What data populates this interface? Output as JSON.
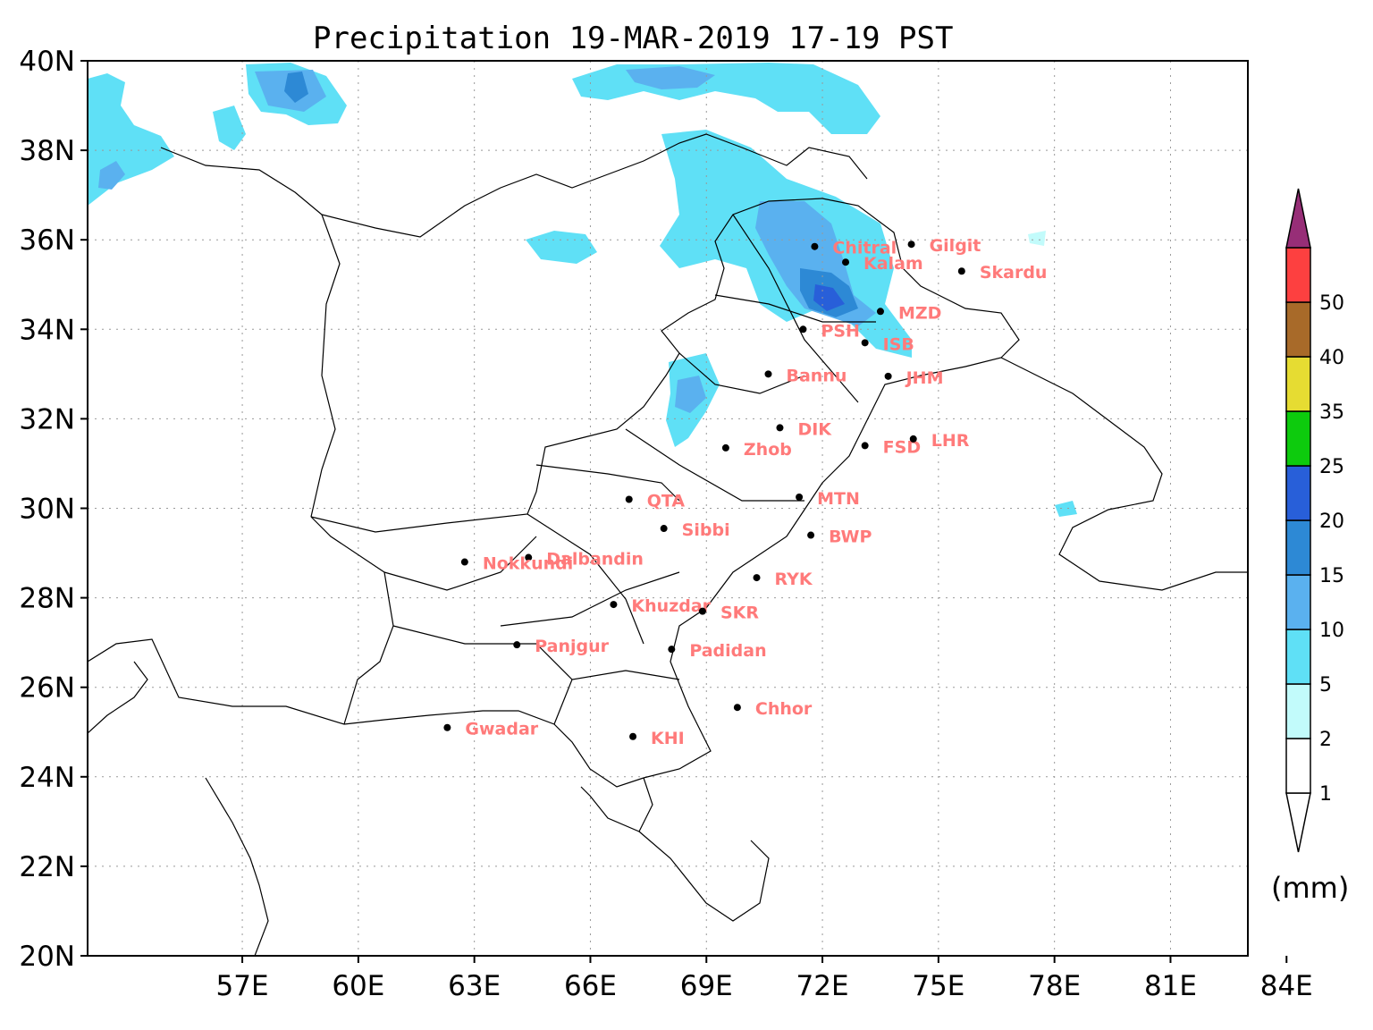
{
  "title": "Precipitation 19-MAR-2019 17-19 PST",
  "unit_label": "(mm)",
  "axes": {
    "lon_range": [
      53,
      83
    ],
    "lat_range": [
      20,
      40
    ],
    "lon_ticks": [
      {
        "value": 57,
        "label": "57E"
      },
      {
        "value": 60,
        "label": "60E"
      },
      {
        "value": 63,
        "label": "63E"
      },
      {
        "value": 66,
        "label": "66E"
      },
      {
        "value": 69,
        "label": "69E"
      },
      {
        "value": 72,
        "label": "72E"
      },
      {
        "value": 75,
        "label": "75E"
      },
      {
        "value": 78,
        "label": "78E"
      },
      {
        "value": 81,
        "label": "81E"
      },
      {
        "value": 84,
        "label": "84E"
      }
    ],
    "lat_ticks": [
      {
        "value": 20,
        "label": "20N"
      },
      {
        "value": 22,
        "label": "22N"
      },
      {
        "value": 24,
        "label": "24N"
      },
      {
        "value": 26,
        "label": "26N"
      },
      {
        "value": 28,
        "label": "28N"
      },
      {
        "value": 30,
        "label": "30N"
      },
      {
        "value": 32,
        "label": "32N"
      },
      {
        "value": 34,
        "label": "34N"
      },
      {
        "value": 36,
        "label": "36N"
      },
      {
        "value": 38,
        "label": "38N"
      },
      {
        "value": 40,
        "label": "40N"
      }
    ],
    "grid": true
  },
  "colorbar": {
    "levels": [
      {
        "label": "1",
        "color": "#ffffff"
      },
      {
        "label": "2",
        "color": "#c2fbfb"
      },
      {
        "label": "5",
        "color": "#5fe0f6"
      },
      {
        "label": "10",
        "color": "#5ab1ef"
      },
      {
        "label": "15",
        "color": "#2d89d5"
      },
      {
        "label": "20",
        "color": "#285fd9"
      },
      {
        "label": "25",
        "color": "#0dcb0d"
      },
      {
        "label": "35",
        "color": "#e6dc32"
      },
      {
        "label": "40",
        "color": "#a86a29"
      },
      {
        "label": "50",
        "color": "#fd4040"
      }
    ],
    "over_color": "#972e77"
  },
  "stations": [
    {
      "name": "Chitral",
      "lon": 71.8,
      "lat": 35.85
    },
    {
      "name": "Gilgit",
      "lon": 74.3,
      "lat": 35.9
    },
    {
      "name": "Kalam",
      "lon": 72.6,
      "lat": 35.5
    },
    {
      "name": "Skardu",
      "lon": 75.6,
      "lat": 35.3
    },
    {
      "name": "MZD",
      "lon": 73.5,
      "lat": 34.4
    },
    {
      "name": "PSH",
      "lon": 71.5,
      "lat": 34.0
    },
    {
      "name": "ISB",
      "lon": 73.1,
      "lat": 33.7
    },
    {
      "name": "Bannu",
      "lon": 70.6,
      "lat": 33.0
    },
    {
      "name": "JHM",
      "lon": 73.7,
      "lat": 32.95
    },
    {
      "name": "DIK",
      "lon": 70.9,
      "lat": 31.8
    },
    {
      "name": "Zhob",
      "lon": 69.5,
      "lat": 31.35
    },
    {
      "name": "FSD",
      "lon": 73.1,
      "lat": 31.4
    },
    {
      "name": "LHR",
      "lon": 74.35,
      "lat": 31.55
    },
    {
      "name": "QTA",
      "lon": 67.0,
      "lat": 30.2
    },
    {
      "name": "MTN",
      "lon": 71.4,
      "lat": 30.25
    },
    {
      "name": "Sibbi",
      "lon": 67.9,
      "lat": 29.55
    },
    {
      "name": "BWP",
      "lon": 71.7,
      "lat": 29.4
    },
    {
      "name": "Dalbandin",
      "lon": 64.4,
      "lat": 28.9
    },
    {
      "name": "Nokkundi",
      "lon": 62.75,
      "lat": 28.8
    },
    {
      "name": "RYK",
      "lon": 70.3,
      "lat": 28.45
    },
    {
      "name": "Khuzdar",
      "lon": 66.6,
      "lat": 27.85
    },
    {
      "name": "SKR",
      "lon": 68.9,
      "lat": 27.7
    },
    {
      "name": "Panjgur",
      "lon": 64.1,
      "lat": 26.95
    },
    {
      "name": "Padidan",
      "lon": 68.1,
      "lat": 26.85
    },
    {
      "name": "Chhor",
      "lon": 69.8,
      "lat": 25.55
    },
    {
      "name": "Gwadar",
      "lon": 62.3,
      "lat": 25.1
    },
    {
      "name": "KHI",
      "lon": 67.1,
      "lat": 24.9
    }
  ]
}
